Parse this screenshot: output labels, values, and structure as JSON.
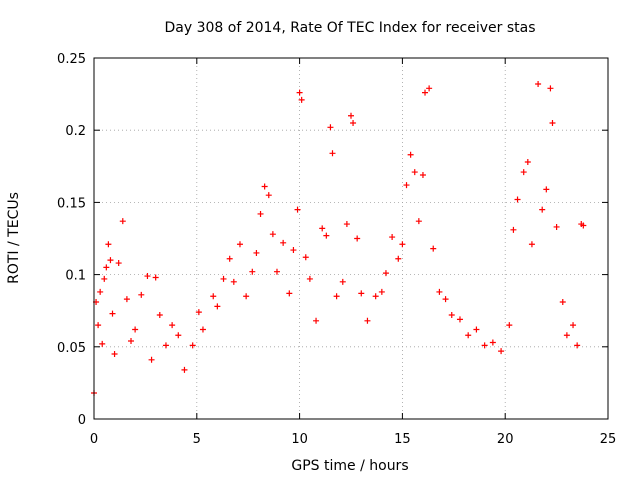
{
  "chart_data": {
    "type": "scatter",
    "title": "Day 308 of 2014, Rate Of TEC Index for receiver stas",
    "xlabel": "GPS time / hours",
    "ylabel": "ROTI / TECUs",
    "xlim": [
      0,
      25
    ],
    "ylim": [
      0,
      0.25
    ],
    "xticks": [
      0,
      5,
      10,
      15,
      20,
      25
    ],
    "xtick_labels": [
      "0",
      "5",
      "10",
      "15",
      "20",
      "25"
    ],
    "yticks": [
      0,
      0.05,
      0.1,
      0.15,
      0.2,
      0.25
    ],
    "ytick_labels": [
      "0",
      "0.05",
      "0.1",
      "0.15",
      "0.2",
      "0.25"
    ],
    "grid": true,
    "marker": "+",
    "marker_color": "#ff0000",
    "series": [
      {
        "name": "ROTI",
        "points": [
          [
            0.0,
            0.018
          ],
          [
            0.1,
            0.081
          ],
          [
            0.2,
            0.065
          ],
          [
            0.3,
            0.088
          ],
          [
            0.4,
            0.052
          ],
          [
            0.5,
            0.097
          ],
          [
            0.6,
            0.105
          ],
          [
            0.7,
            0.121
          ],
          [
            0.8,
            0.11
          ],
          [
            0.9,
            0.073
          ],
          [
            1.0,
            0.045
          ],
          [
            1.2,
            0.108
          ],
          [
            1.4,
            0.137
          ],
          [
            1.6,
            0.083
          ],
          [
            1.8,
            0.054
          ],
          [
            2.0,
            0.062
          ],
          [
            2.3,
            0.086
          ],
          [
            2.6,
            0.099
          ],
          [
            2.8,
            0.041
          ],
          [
            3.0,
            0.098
          ],
          [
            3.2,
            0.072
          ],
          [
            3.5,
            0.051
          ],
          [
            3.8,
            0.065
          ],
          [
            4.1,
            0.058
          ],
          [
            4.4,
            0.034
          ],
          [
            4.8,
            0.051
          ],
          [
            5.1,
            0.074
          ],
          [
            5.3,
            0.062
          ],
          [
            5.8,
            0.085
          ],
          [
            6.0,
            0.078
          ],
          [
            6.3,
            0.097
          ],
          [
            6.6,
            0.111
          ],
          [
            6.8,
            0.095
          ],
          [
            7.1,
            0.121
          ],
          [
            7.4,
            0.085
          ],
          [
            7.7,
            0.102
          ],
          [
            7.9,
            0.115
          ],
          [
            8.1,
            0.142
          ],
          [
            8.3,
            0.161
          ],
          [
            8.5,
            0.155
          ],
          [
            8.7,
            0.128
          ],
          [
            8.9,
            0.102
          ],
          [
            9.2,
            0.122
          ],
          [
            9.5,
            0.087
          ],
          [
            9.7,
            0.117
          ],
          [
            9.9,
            0.145
          ],
          [
            10.0,
            0.226
          ],
          [
            10.1,
            0.221
          ],
          [
            10.3,
            0.112
          ],
          [
            10.5,
            0.097
          ],
          [
            10.8,
            0.068
          ],
          [
            11.1,
            0.132
          ],
          [
            11.3,
            0.127
          ],
          [
            11.5,
            0.202
          ],
          [
            11.6,
            0.184
          ],
          [
            11.8,
            0.085
          ],
          [
            12.1,
            0.095
          ],
          [
            12.3,
            0.135
          ],
          [
            12.5,
            0.21
          ],
          [
            12.6,
            0.205
          ],
          [
            12.8,
            0.125
          ],
          [
            13.0,
            0.087
          ],
          [
            13.3,
            0.068
          ],
          [
            13.7,
            0.085
          ],
          [
            14.0,
            0.088
          ],
          [
            14.2,
            0.101
          ],
          [
            14.5,
            0.126
          ],
          [
            14.8,
            0.111
          ],
          [
            15.0,
            0.121
          ],
          [
            15.2,
            0.162
          ],
          [
            15.4,
            0.183
          ],
          [
            15.6,
            0.171
          ],
          [
            15.8,
            0.137
          ],
          [
            16.0,
            0.169
          ],
          [
            16.1,
            0.226
          ],
          [
            16.3,
            0.229
          ],
          [
            16.5,
            0.118
          ],
          [
            16.8,
            0.088
          ],
          [
            17.1,
            0.083
          ],
          [
            17.4,
            0.072
          ],
          [
            17.8,
            0.069
          ],
          [
            18.2,
            0.058
          ],
          [
            18.6,
            0.062
          ],
          [
            19.0,
            0.051
          ],
          [
            19.4,
            0.053
          ],
          [
            19.8,
            0.047
          ],
          [
            20.2,
            0.065
          ],
          [
            20.4,
            0.131
          ],
          [
            20.6,
            0.152
          ],
          [
            20.9,
            0.171
          ],
          [
            21.1,
            0.178
          ],
          [
            21.3,
            0.121
          ],
          [
            21.6,
            0.232
          ],
          [
            21.8,
            0.145
          ],
          [
            22.0,
            0.159
          ],
          [
            22.2,
            0.229
          ],
          [
            22.3,
            0.205
          ],
          [
            22.5,
            0.133
          ],
          [
            22.8,
            0.081
          ],
          [
            23.0,
            0.058
          ],
          [
            23.3,
            0.065
          ],
          [
            23.5,
            0.051
          ],
          [
            23.7,
            0.135
          ],
          [
            23.8,
            0.134
          ]
        ]
      }
    ]
  }
}
